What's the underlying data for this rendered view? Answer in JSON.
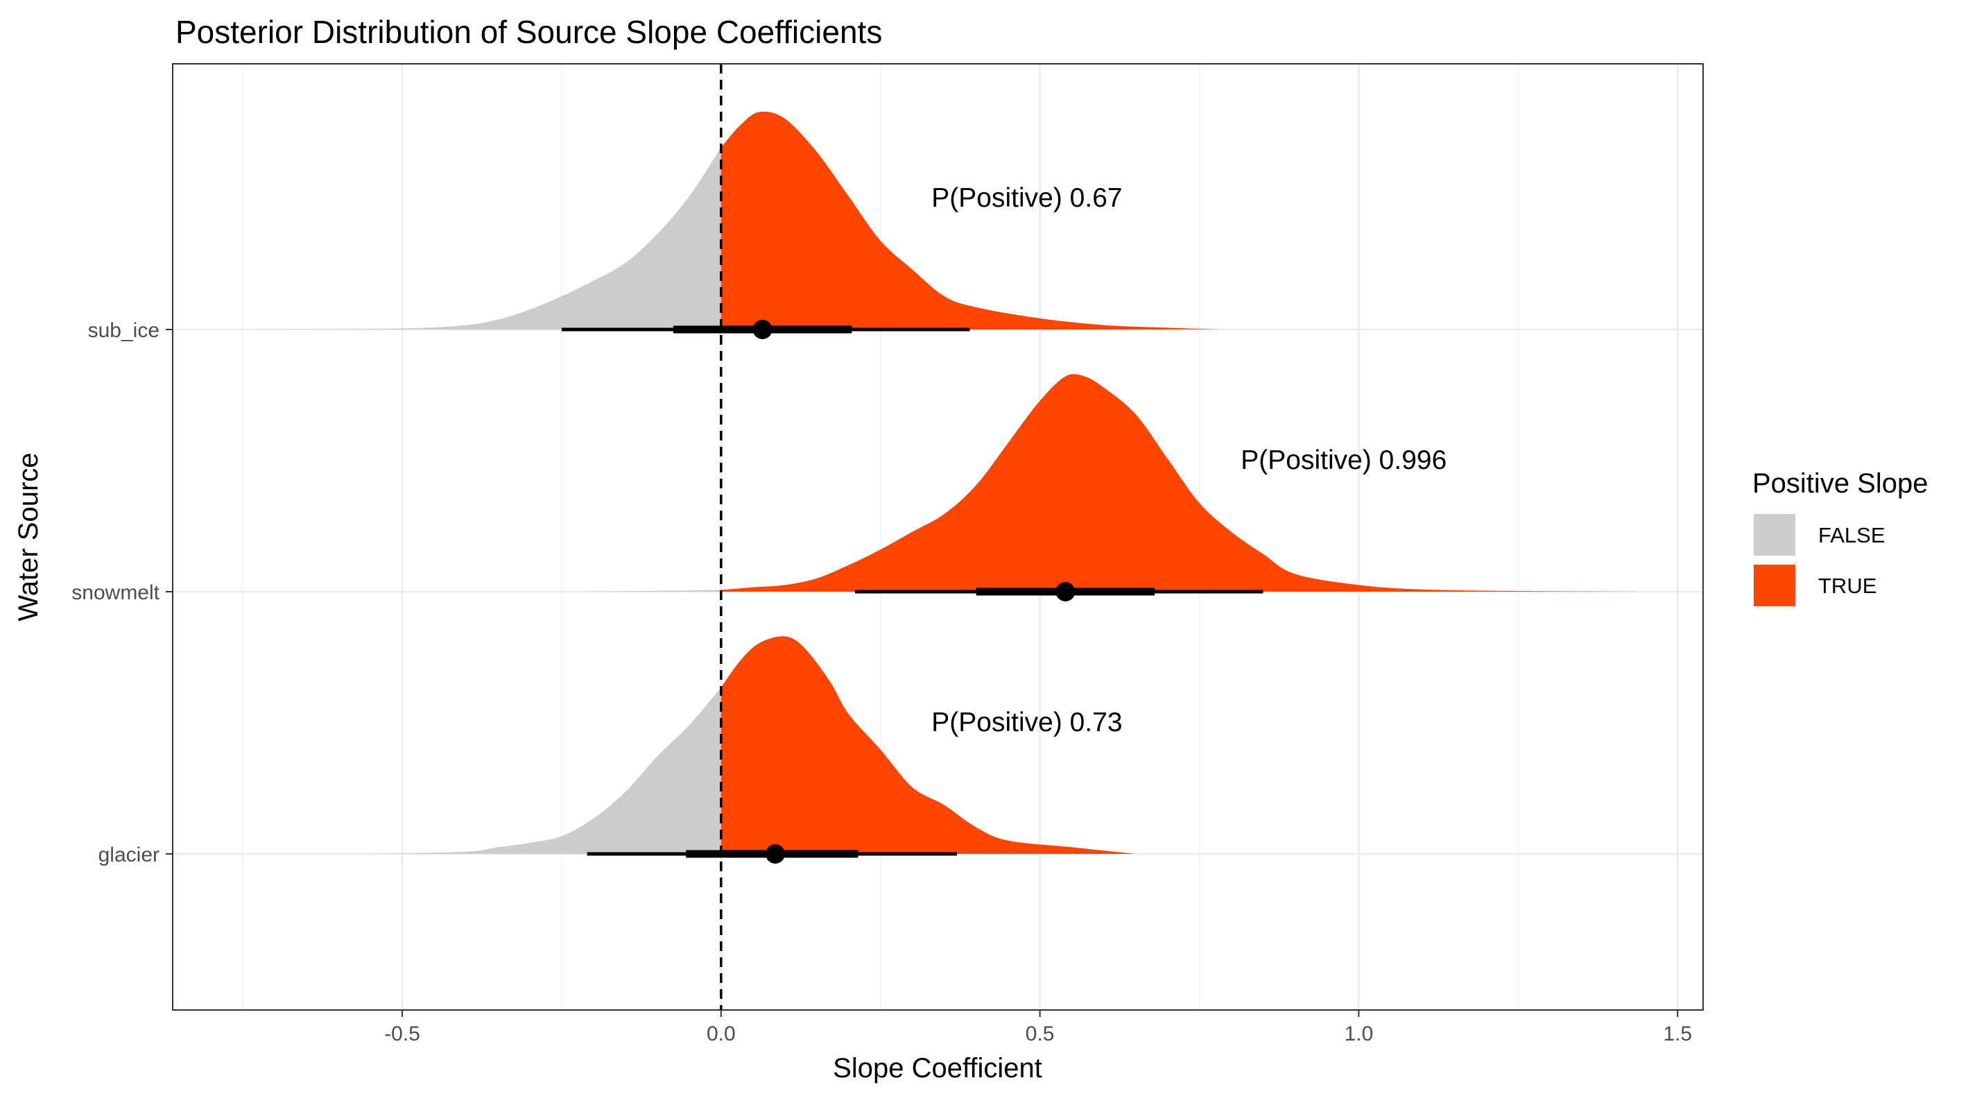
{
  "chart_data": {
    "type": "density-ridgeline",
    "title": "Posterior Distribution of Source Slope Coefficients",
    "xlabel": "Slope Coefficient",
    "ylabel": "Water Source",
    "xlim": [
      -0.86,
      1.54
    ],
    "x_ticks": [
      -0.5,
      0.0,
      0.5,
      1.0,
      1.5
    ],
    "x_tick_labels": [
      "-0.5",
      "0.0",
      "0.5",
      "1.0",
      "1.5"
    ],
    "categories": [
      "sub_ice",
      "snowmelt",
      "glacier"
    ],
    "reference_line": {
      "x": 0,
      "style": "dashed"
    },
    "grid": true,
    "legend": {
      "title": "Positive Slope",
      "placement": "right",
      "entries": [
        {
          "label": "FALSE",
          "color": "#cccccc"
        },
        {
          "label": "TRUE",
          "color": "#ff4500"
        }
      ]
    },
    "series": [
      {
        "category": "sub_ice",
        "annotation": "P(Positive) 0.67",
        "annotation_x": 0.33,
        "median": 0.065,
        "interval_66": [
          -0.075,
          0.205
        ],
        "interval_95": [
          -0.25,
          0.39
        ],
        "density": [
          [
            -0.75,
            0.0
          ],
          [
            -0.5,
            0.005
          ],
          [
            -0.4,
            0.02
          ],
          [
            -0.35,
            0.045
          ],
          [
            -0.3,
            0.09
          ],
          [
            -0.25,
            0.15
          ],
          [
            -0.2,
            0.22
          ],
          [
            -0.15,
            0.3
          ],
          [
            -0.1,
            0.43
          ],
          [
            -0.05,
            0.6
          ],
          [
            0.0,
            0.82
          ],
          [
            0.03,
            0.92
          ],
          [
            0.06,
            0.98
          ],
          [
            0.1,
            0.95
          ],
          [
            0.15,
            0.8
          ],
          [
            0.2,
            0.6
          ],
          [
            0.25,
            0.4
          ],
          [
            0.3,
            0.27
          ],
          [
            0.35,
            0.15
          ],
          [
            0.4,
            0.1
          ],
          [
            0.5,
            0.05
          ],
          [
            0.6,
            0.02
          ],
          [
            0.7,
            0.008
          ],
          [
            0.78,
            0.0
          ]
        ]
      },
      {
        "category": "snowmelt",
        "annotation": "P(Positive) 0.996",
        "annotation_x": 0.815,
        "median": 0.54,
        "interval_66": [
          0.4,
          0.68
        ],
        "interval_95": [
          0.21,
          0.85
        ],
        "density": [
          [
            -0.23,
            0.0
          ],
          [
            -0.1,
            0.004
          ],
          [
            0.0,
            0.008
          ],
          [
            0.05,
            0.02
          ],
          [
            0.1,
            0.03
          ],
          [
            0.15,
            0.06
          ],
          [
            0.2,
            0.12
          ],
          [
            0.25,
            0.19
          ],
          [
            0.3,
            0.27
          ],
          [
            0.35,
            0.35
          ],
          [
            0.4,
            0.48
          ],
          [
            0.45,
            0.67
          ],
          [
            0.5,
            0.86
          ],
          [
            0.54,
            0.97
          ],
          [
            0.57,
            0.97
          ],
          [
            0.6,
            0.92
          ],
          [
            0.65,
            0.8
          ],
          [
            0.7,
            0.6
          ],
          [
            0.75,
            0.4
          ],
          [
            0.8,
            0.27
          ],
          [
            0.85,
            0.17
          ],
          [
            0.9,
            0.08
          ],
          [
            1.0,
            0.03
          ],
          [
            1.1,
            0.01
          ],
          [
            1.25,
            0.003
          ],
          [
            1.44,
            0.0
          ]
        ]
      },
      {
        "category": "glacier",
        "annotation": "P(Positive) 0.73",
        "annotation_x": 0.33,
        "median": 0.085,
        "interval_66": [
          -0.055,
          0.215
        ],
        "interval_95": [
          -0.21,
          0.37
        ],
        "density": [
          [
            -0.55,
            0.0
          ],
          [
            -0.4,
            0.01
          ],
          [
            -0.35,
            0.03
          ],
          [
            -0.3,
            0.05
          ],
          [
            -0.25,
            0.08
          ],
          [
            -0.2,
            0.16
          ],
          [
            -0.15,
            0.28
          ],
          [
            -0.1,
            0.44
          ],
          [
            -0.05,
            0.58
          ],
          [
            0.0,
            0.75
          ],
          [
            0.03,
            0.87
          ],
          [
            0.06,
            0.95
          ],
          [
            0.1,
            0.98
          ],
          [
            0.13,
            0.93
          ],
          [
            0.17,
            0.78
          ],
          [
            0.2,
            0.63
          ],
          [
            0.25,
            0.47
          ],
          [
            0.3,
            0.3
          ],
          [
            0.35,
            0.22
          ],
          [
            0.4,
            0.12
          ],
          [
            0.45,
            0.06
          ],
          [
            0.55,
            0.03
          ],
          [
            0.65,
            0.0
          ]
        ]
      }
    ]
  }
}
